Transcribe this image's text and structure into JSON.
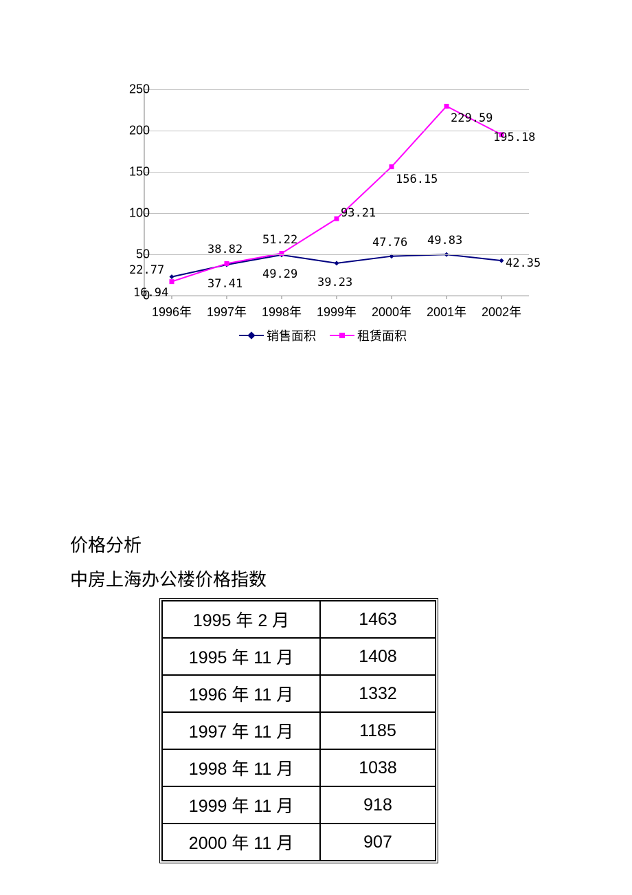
{
  "chart": {
    "type": "line",
    "categories": [
      "1996年",
      "1997年",
      "1998年",
      "1999年",
      "2000年",
      "2001年",
      "2002年"
    ],
    "ylim": [
      0,
      250
    ],
    "ytick_step": 50,
    "yticks": [
      0,
      50,
      100,
      150,
      200,
      250
    ],
    "background_color": "#ffffff",
    "grid_color": "#c0c0c0",
    "axis_color": "#808080",
    "tick_fontsize": 18,
    "label_fontsize": 17,
    "series": [
      {
        "name": "销售面积",
        "color": "#000080",
        "marker": "diamond",
        "marker_size": 7,
        "line_width": 2,
        "values": [
          22.77,
          37.41,
          49.29,
          39.23,
          47.76,
          49.83,
          42.35
        ],
        "data_labels": [
          "22.77",
          "37.41",
          "49.29",
          "39.23",
          "47.76",
          "49.83",
          "42.35"
        ],
        "label_positions": [
          "above-left",
          "below",
          "below",
          "below",
          "above",
          "above",
          "right"
        ]
      },
      {
        "name": "租赁面积",
        "color": "#ff00ff",
        "marker": "square",
        "marker_size": 7,
        "line_width": 2,
        "values": [
          16.94,
          38.82,
          51.22,
          93.21,
          156.15,
          229.59,
          195.18
        ],
        "data_labels": [
          "16.94",
          "38.82",
          "51.22",
          "93.21",
          "156.15",
          "229.59",
          "195.18"
        ],
        "label_positions": [
          "below-left",
          "above",
          "above",
          "above-right",
          "below-right",
          "below-right",
          "right"
        ]
      }
    ],
    "legend_fontsize": 18
  },
  "text": {
    "line1": "价格分析",
    "line2": "中房上海办公楼价格指数"
  },
  "table": {
    "type": "table",
    "border_color": "#000000",
    "cell_fontsize": 25,
    "rows": [
      [
        "1995 年 2 月",
        "1463"
      ],
      [
        "1995 年 11 月",
        "1408"
      ],
      [
        "1996 年 11 月",
        "1332"
      ],
      [
        "1997 年 11 月",
        "1185"
      ],
      [
        "1998 年 11 月",
        "1038"
      ],
      [
        "1999 年 11 月",
        "918"
      ],
      [
        "2000 年 11 月",
        "907"
      ]
    ]
  }
}
